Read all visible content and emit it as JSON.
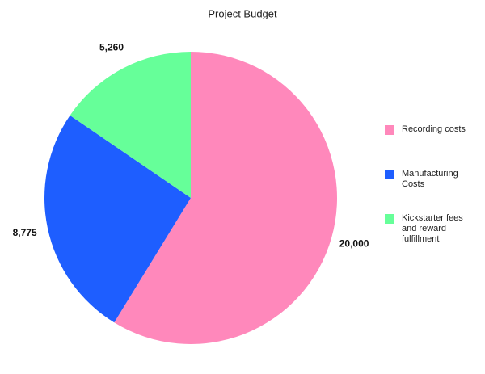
{
  "chart_data": {
    "type": "pie",
    "title": "Project Budget",
    "categories": [
      "Recording costs",
      "Manufacturing Costs",
      "Kickstarter fees and reward fulfillment"
    ],
    "values": [
      20000,
      8775,
      5260
    ],
    "value_labels": [
      "20,000",
      "8,775",
      "5,260"
    ],
    "colors": [
      "#ff88bb",
      "#1e5eff",
      "#66ff99"
    ],
    "legend": "right"
  }
}
